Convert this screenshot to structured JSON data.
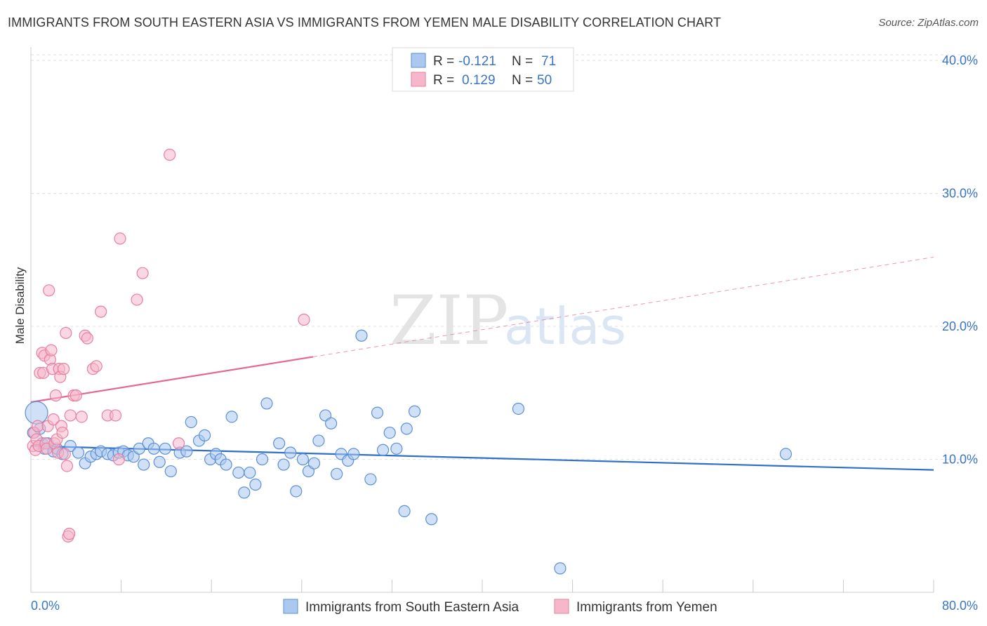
{
  "title": "IMMIGRANTS FROM SOUTH EASTERN ASIA VS IMMIGRANTS FROM YEMEN MALE DISABILITY CORRELATION CHART",
  "source": "Source: ZipAtlas.com",
  "watermark": {
    "zip": "ZIP",
    "atlas": "atlas"
  },
  "colors": {
    "blue_fill": "#aac8f0",
    "blue_stroke": "#5b8fd6",
    "blue_line": "#2f6fcb",
    "pink_fill": "#f6b7cb",
    "pink_stroke": "#e77fa1",
    "pink_line": "#e46990",
    "grid": "#e2e2e2",
    "axis_text": "#3a74c8"
  },
  "legend": {
    "rows": [
      {
        "r_label": "R =",
        "r_value": "-0.121",
        "n_label": "N =",
        "n_value": "71"
      },
      {
        "r_label": "R =",
        "r_value": "0.129",
        "n_label": "N =",
        "n_value": "50"
      }
    ]
  },
  "chart_data": {
    "type": "scatter",
    "title": "IMMIGRANTS FROM SOUTH EASTERN ASIA VS IMMIGRANTS FROM YEMEN MALE DISABILITY CORRELATION CHART",
    "xlabel": "",
    "ylabel": "Male Disability",
    "xlim": [
      0,
      80
    ],
    "ylim": [
      0,
      41
    ],
    "x_tick_labels": [
      "0.0%",
      "80.0%"
    ],
    "y_ticks": [
      10,
      20,
      30,
      40
    ],
    "y_tick_labels": [
      "10.0%",
      "20.0%",
      "30.0%",
      "40.0%"
    ],
    "grid": true,
    "legend_position": "top-center",
    "series": [
      {
        "name": "Immigrants from South Eastern Asia",
        "color": "#aac8f0",
        "trend": {
          "x": [
            0,
            80
          ],
          "y": [
            11.0,
            9.2
          ],
          "dashed_from": 80
        },
        "points": [
          [
            0.5,
            13.5
          ],
          [
            0.8,
            12.3
          ],
          [
            1.0,
            11.2
          ],
          [
            1.2,
            10.8
          ],
          [
            1.5,
            11.2
          ],
          [
            2.0,
            10.6
          ],
          [
            2.3,
            10.8
          ],
          [
            2.8,
            10.4
          ],
          [
            3.5,
            11.0
          ],
          [
            4.2,
            10.5
          ],
          [
            4.8,
            9.7
          ],
          [
            5.3,
            10.2
          ],
          [
            5.8,
            10.4
          ],
          [
            6.2,
            10.6
          ],
          [
            6.8,
            10.4
          ],
          [
            7.3,
            10.3
          ],
          [
            7.8,
            10.5
          ],
          [
            8.2,
            10.6
          ],
          [
            8.6,
            10.3
          ],
          [
            9.1,
            10.2
          ],
          [
            9.6,
            10.8
          ],
          [
            10.0,
            9.6
          ],
          [
            10.4,
            11.2
          ],
          [
            10.9,
            10.8
          ],
          [
            11.4,
            9.8
          ],
          [
            11.9,
            10.8
          ],
          [
            12.4,
            9.1
          ],
          [
            13.2,
            10.5
          ],
          [
            13.8,
            10.6
          ],
          [
            14.2,
            12.8
          ],
          [
            14.9,
            11.4
          ],
          [
            15.4,
            11.8
          ],
          [
            15.9,
            10.0
          ],
          [
            16.4,
            10.4
          ],
          [
            16.8,
            10.0
          ],
          [
            17.3,
            9.6
          ],
          [
            17.8,
            13.2
          ],
          [
            18.4,
            9.0
          ],
          [
            18.9,
            7.5
          ],
          [
            19.4,
            9.0
          ],
          [
            19.9,
            8.1
          ],
          [
            20.5,
            10.0
          ],
          [
            20.9,
            14.2
          ],
          [
            22.0,
            11.2
          ],
          [
            22.4,
            9.6
          ],
          [
            23.0,
            10.5
          ],
          [
            23.5,
            7.6
          ],
          [
            24.1,
            10.0
          ],
          [
            24.6,
            9.1
          ],
          [
            25.1,
            9.7
          ],
          [
            25.5,
            11.4
          ],
          [
            26.1,
            13.3
          ],
          [
            26.6,
            12.7
          ],
          [
            27.1,
            8.9
          ],
          [
            27.5,
            10.4
          ],
          [
            28.1,
            9.9
          ],
          [
            28.6,
            10.4
          ],
          [
            29.3,
            19.3
          ],
          [
            30.1,
            8.5
          ],
          [
            30.7,
            13.5
          ],
          [
            31.2,
            10.7
          ],
          [
            31.8,
            12.0
          ],
          [
            32.4,
            10.8
          ],
          [
            33.1,
            6.1
          ],
          [
            33.3,
            12.3
          ],
          [
            34.0,
            13.6
          ],
          [
            35.5,
            5.5
          ],
          [
            43.2,
            13.8
          ],
          [
            46.9,
            1.8
          ],
          [
            66.9,
            10.4
          ],
          [
            0.2,
            12.0
          ]
        ]
      },
      {
        "name": "Immigrants from Yemen",
        "color": "#f6b7cb",
        "trend": {
          "x": [
            0,
            80
          ],
          "y": [
            14.3,
            25.2
          ],
          "dashed_from": 25
        },
        "points": [
          [
            0.2,
            11.0
          ],
          [
            0.3,
            12.0
          ],
          [
            0.4,
            10.7
          ],
          [
            0.5,
            11.5
          ],
          [
            0.6,
            12.5
          ],
          [
            0.7,
            11.0
          ],
          [
            0.8,
            16.5
          ],
          [
            1.0,
            18.0
          ],
          [
            1.1,
            16.5
          ],
          [
            1.2,
            17.8
          ],
          [
            1.3,
            11.2
          ],
          [
            1.4,
            10.8
          ],
          [
            1.5,
            12.5
          ],
          [
            1.6,
            22.7
          ],
          [
            1.7,
            17.5
          ],
          [
            1.8,
            18.2
          ],
          [
            1.9,
            16.8
          ],
          [
            2.0,
            13.0
          ],
          [
            2.1,
            11.2
          ],
          [
            2.2,
            14.8
          ],
          [
            2.3,
            11.5
          ],
          [
            2.4,
            10.5
          ],
          [
            2.5,
            16.8
          ],
          [
            2.6,
            16.2
          ],
          [
            2.7,
            12.5
          ],
          [
            2.8,
            12.0
          ],
          [
            2.9,
            16.8
          ],
          [
            3.0,
            10.4
          ],
          [
            3.1,
            19.5
          ],
          [
            3.2,
            9.5
          ],
          [
            3.3,
            4.2
          ],
          [
            3.4,
            4.4
          ],
          [
            3.5,
            13.3
          ],
          [
            3.8,
            14.8
          ],
          [
            4.0,
            14.8
          ],
          [
            4.5,
            13.2
          ],
          [
            4.8,
            19.3
          ],
          [
            5.0,
            19.1
          ],
          [
            5.5,
            16.8
          ],
          [
            5.8,
            17.0
          ],
          [
            6.2,
            21.1
          ],
          [
            6.8,
            13.3
          ],
          [
            7.5,
            13.3
          ],
          [
            7.8,
            10.0
          ],
          [
            7.9,
            26.6
          ],
          [
            9.4,
            22.0
          ],
          [
            9.9,
            24.0
          ],
          [
            12.3,
            32.9
          ],
          [
            13.1,
            11.2
          ],
          [
            24.2,
            20.5
          ]
        ]
      }
    ]
  }
}
